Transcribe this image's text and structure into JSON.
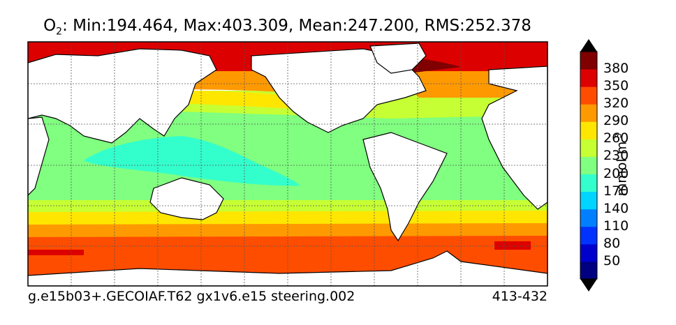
{
  "title": {
    "species": "O",
    "subscript": "2",
    "stats": ": Min:194.464, Max:403.309, Mean:247.200, RMS:252.378"
  },
  "footer": {
    "case_name": "g.e15b03+.GECOIAF.T62 gx1v6.e15 steering.002",
    "years": "413-432"
  },
  "colorbar": {
    "levels": [
      "50",
      "80",
      "110",
      "140",
      "170",
      "200",
      "230",
      "260",
      "290",
      "320",
      "350",
      "380"
    ],
    "colors": [
      "#000080",
      "#0000cd",
      "#0033ff",
      "#0080ff",
      "#00d4ff",
      "#33ffcc",
      "#80ff80",
      "#c6ff33",
      "#ffe600",
      "#ff9900",
      "#ff4d00",
      "#dd0000",
      "#800000"
    ],
    "extend": "both"
  },
  "unit_label": "mmol m",
  "unit_exponent": "-3",
  "map": {
    "gridlines": "dashed",
    "land_color": "#ffffff",
    "coastline_color": "#000000"
  }
}
